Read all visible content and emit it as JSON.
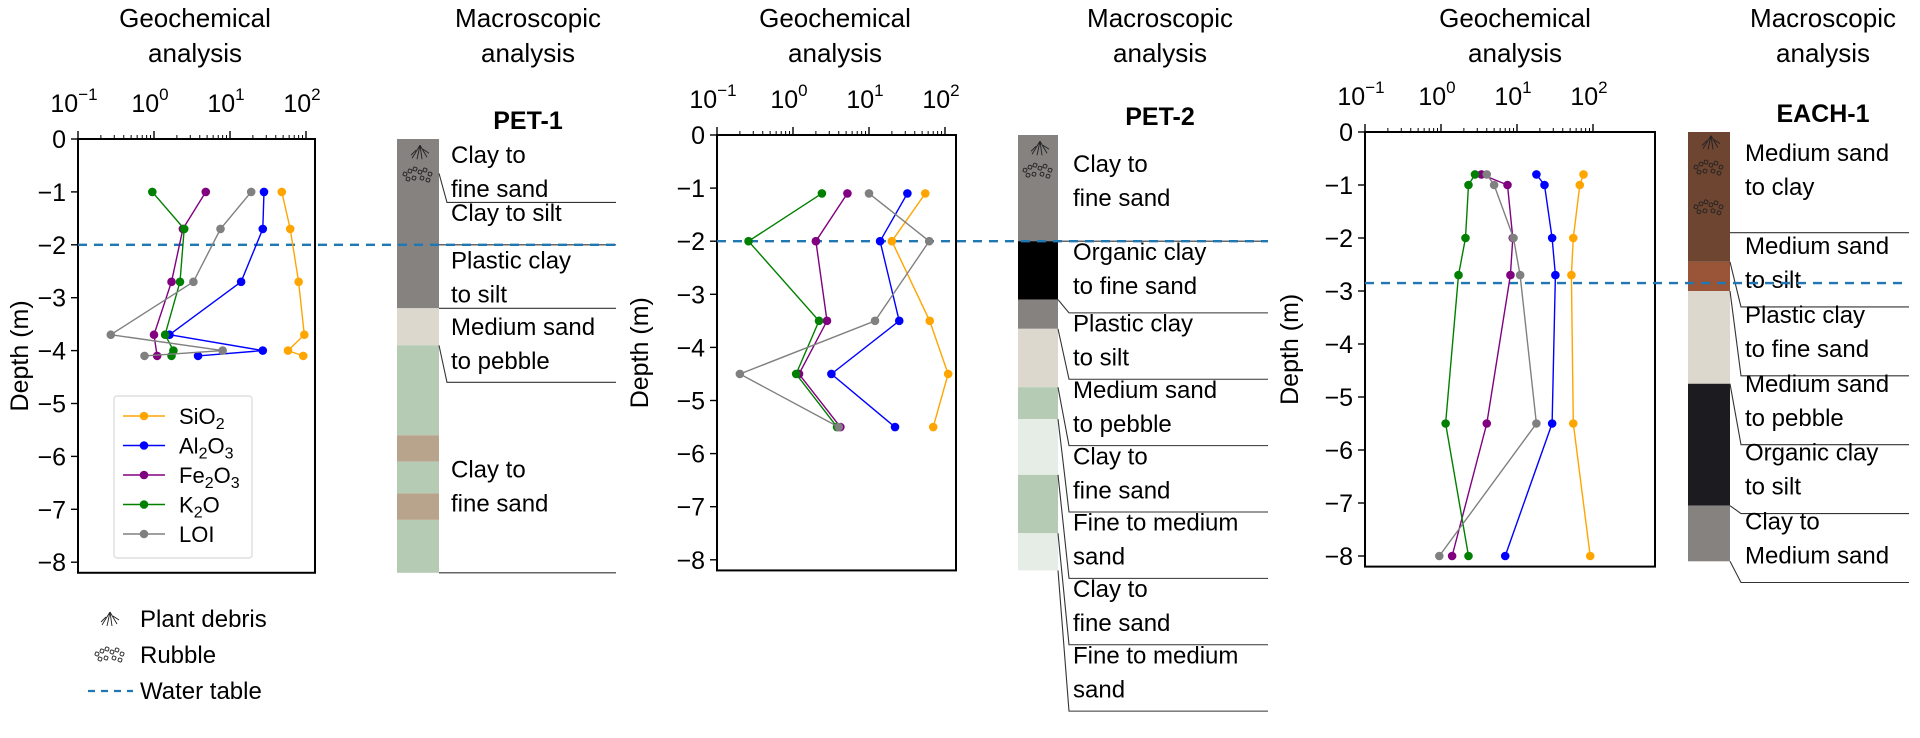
{
  "colors": {
    "SiO2": "#ffa500",
    "Al2O3": "#0000ff",
    "Fe2O3": "#800080",
    "K2O": "#008000",
    "LOI": "#808080",
    "water_table": "#1f77b4",
    "clay_grey": "#858280",
    "organic_black": "#000000",
    "organic_dark": "#1c1b20",
    "pale": "#ddd8ce",
    "green": "#b6cbb4",
    "light_green": "#e6ede6",
    "tan": "#b8a48c",
    "brown": "#6e4531",
    "rust": "#9a5438"
  },
  "legend_keys": {
    "plant_debris": "Plant debris",
    "rubble": "Rubble",
    "water_table": "Water table"
  },
  "chart_data": [
    {
      "type": "line",
      "well": "PET-1",
      "geo_title_1": "Geochemical",
      "geo_title_2": "analysis",
      "macro_title_1": "Macroscopic",
      "macro_title_2": "analysis",
      "xscale": "log",
      "xlim": [
        0.1,
        135
      ],
      "ylim": [
        -8.2,
        0
      ],
      "xticks": [
        {
          "base": "10",
          "exp": "−1",
          "value": 0.1
        },
        {
          "base": "10",
          "exp": "0",
          "value": 1
        },
        {
          "base": "10",
          "exp": "1",
          "value": 10
        },
        {
          "base": "10",
          "exp": "2",
          "value": 100
        }
      ],
      "yticks": [
        {
          "label": "0",
          "value": 0
        },
        {
          "label": "−1",
          "value": -1
        },
        {
          "label": "−2",
          "value": -2
        },
        {
          "label": "−3",
          "value": -3
        },
        {
          "label": "−4",
          "value": -4
        },
        {
          "label": "−5",
          "value": -5
        },
        {
          "label": "−6",
          "value": -6
        },
        {
          "label": "−7",
          "value": -7
        },
        {
          "label": "−8",
          "value": -8
        }
      ],
      "ylabel": "Depth (m)",
      "water_table_depth": -2.0,
      "legend": "lower-left",
      "series": [
        {
          "name": "SiO2",
          "label_main": "SiO",
          "label_sub": "2",
          "label_tail": "",
          "points": [
            [
              48,
              -1
            ],
            [
              62,
              -1.7
            ],
            [
              80,
              -2.7
            ],
            [
              95,
              -3.7
            ],
            [
              58,
              -4
            ],
            [
              92,
              -4.1
            ]
          ]
        },
        {
          "name": "Al2O3",
          "label_main": "Al",
          "label_sub": "2",
          "label_tail": "O",
          "label_sub2": "3",
          "points": [
            [
              28,
              -1
            ],
            [
              27,
              -1.7
            ],
            [
              14,
              -2.7
            ],
            [
              1.6,
              -3.7
            ],
            [
              27,
              -4
            ],
            [
              3.8,
              -4.1
            ]
          ]
        },
        {
          "name": "Fe2O3",
          "label_main": "Fe",
          "label_sub": "2",
          "label_tail": "O",
          "label_sub2": "3",
          "points": [
            [
              4.8,
              -1
            ],
            [
              2.4,
              -1.7
            ],
            [
              1.7,
              -2.7
            ],
            [
              1.0,
              -3.7
            ],
            [
              1.1,
              -4.1
            ]
          ]
        },
        {
          "name": "K2O",
          "label_main": "K",
          "label_sub": "2",
          "label_tail": "O",
          "points": [
            [
              0.95,
              -1
            ],
            [
              2.5,
              -1.7
            ],
            [
              2.2,
              -2.7
            ],
            [
              1.4,
              -3.7
            ],
            [
              1.8,
              -4
            ],
            [
              1.7,
              -4.1
            ]
          ]
        },
        {
          "name": "LOI",
          "label_main": "LOI",
          "label_sub": "",
          "label_tail": "",
          "points": [
            [
              19,
              -1
            ],
            [
              7.5,
              -1.7
            ],
            [
              3.3,
              -2.7
            ],
            [
              0.27,
              -3.7
            ],
            [
              8,
              -4
            ],
            [
              0.75,
              -4.1
            ]
          ]
        }
      ],
      "column": [
        {
          "top": 0,
          "bottom": -3.2,
          "color": "clay_grey"
        },
        {
          "top": -3.2,
          "bottom": -3.9,
          "color": "pale"
        },
        {
          "top": -3.9,
          "bottom": -5.6,
          "color": "green"
        },
        {
          "top": -5.6,
          "bottom": -6.1,
          "color": "tan"
        },
        {
          "top": -6.1,
          "bottom": -6.7,
          "color": "green"
        },
        {
          "top": -6.7,
          "bottom": -7.2,
          "color": "tan"
        },
        {
          "top": -7.2,
          "bottom": -8.2,
          "color": "green"
        }
      ],
      "icons": [
        {
          "type": "plant",
          "depth": -0.25
        },
        {
          "type": "rubble",
          "depth": -0.7
        }
      ],
      "units": [
        {
          "lines": [
            "Clay to",
            "fine sand"
          ],
          "text_top": -0.3,
          "line_depth": -1.2,
          "connect_depth": -0.65
        },
        {
          "lines": [
            "Clay to silt"
          ],
          "text_top": -1.4,
          "line_depth": -2.0,
          "connect_depth": -2.0
        },
        {
          "lines": [
            "Plastic clay",
            "to silt"
          ],
          "text_top": -2.3,
          "line_depth": -3.2,
          "connect_depth": -3.2
        },
        {
          "lines": [
            "Medium sand",
            "to pebble"
          ],
          "text_top": -3.55,
          "line_depth": -4.6,
          "connect_depth": -3.9
        },
        {
          "lines": [
            "Clay to",
            "fine sand"
          ],
          "text_top": -6.25,
          "line_depth": -8.2,
          "connect_depth": -8.2
        }
      ]
    },
    {
      "type": "line",
      "well": "PET-2",
      "geo_title_1": "Geochemical",
      "geo_title_2": "analysis",
      "macro_title_1": "Macroscopic",
      "macro_title_2": "analysis",
      "xscale": "log",
      "xlim": [
        0.1,
        135
      ],
      "ylim": [
        -8.2,
        0
      ],
      "xticks": [
        {
          "base": "10",
          "exp": "−1",
          "value": 0.1
        },
        {
          "base": "10",
          "exp": "0",
          "value": 1
        },
        {
          "base": "10",
          "exp": "1",
          "value": 10
        },
        {
          "base": "10",
          "exp": "2",
          "value": 100
        }
      ],
      "yticks": [
        {
          "label": "0",
          "value": 0
        },
        {
          "label": "−1",
          "value": -1
        },
        {
          "label": "−2",
          "value": -2
        },
        {
          "label": "−3",
          "value": -3
        },
        {
          "label": "−4",
          "value": -4
        },
        {
          "label": "−5",
          "value": -5
        },
        {
          "label": "−6",
          "value": -6
        },
        {
          "label": "−7",
          "value": -7
        },
        {
          "label": "−8",
          "value": -8
        }
      ],
      "ylabel": "Depth (m)",
      "water_table_depth": -2.0,
      "series": [
        {
          "name": "SiO2",
          "points": [
            [
              55,
              -1.1
            ],
            [
              20,
              -2
            ],
            [
              63,
              -3.5
            ],
            [
              110,
              -4.5
            ],
            [
              70,
              -5.5
            ]
          ]
        },
        {
          "name": "Al2O3",
          "points": [
            [
              32,
              -1.1
            ],
            [
              14,
              -2
            ],
            [
              25,
              -3.5
            ],
            [
              3.2,
              -4.5
            ],
            [
              22,
              -5.5
            ]
          ]
        },
        {
          "name": "Fe2O3",
          "points": [
            [
              5.2,
              -1.1
            ],
            [
              2.0,
              -2
            ],
            [
              2.8,
              -3.5
            ],
            [
              1.2,
              -4.5
            ],
            [
              4.2,
              -5.5
            ]
          ]
        },
        {
          "name": "K2O",
          "points": [
            [
              2.4,
              -1.1
            ],
            [
              0.26,
              -2
            ],
            [
              2.2,
              -3.5
            ],
            [
              1.1,
              -4.5
            ],
            [
              3.8,
              -5.5
            ]
          ]
        },
        {
          "name": "LOI",
          "points": [
            [
              10,
              -1.1
            ],
            [
              62,
              -2
            ],
            [
              12,
              -3.5
            ],
            [
              0.2,
              -4.5
            ],
            [
              4.0,
              -5.5
            ]
          ]
        }
      ],
      "column": [
        {
          "top": 0,
          "bottom": -2.0,
          "color": "clay_grey"
        },
        {
          "top": -2.0,
          "bottom": -3.1,
          "color": "organic_black"
        },
        {
          "top": -3.1,
          "bottom": -3.65,
          "color": "clay_grey"
        },
        {
          "top": -3.65,
          "bottom": -4.75,
          "color": "pale"
        },
        {
          "top": -4.75,
          "bottom": -5.35,
          "color": "green"
        },
        {
          "top": -5.35,
          "bottom": -6.4,
          "color": "light_green"
        },
        {
          "top": -6.4,
          "bottom": -7.5,
          "color": "green"
        },
        {
          "top": -7.5,
          "bottom": -8.2,
          "color": "light_green"
        }
      ],
      "icons": [
        {
          "type": "plant",
          "depth": -0.25
        },
        {
          "type": "rubble",
          "depth": -0.7
        }
      ],
      "units": [
        {
          "lines": [
            "Clay to",
            "fine sand"
          ],
          "text_top": -0.55,
          "line_depth": -2.0,
          "connect_depth": -2.0
        },
        {
          "lines": [
            "Organic clay",
            "to fine sand"
          ],
          "text_top": -2.2,
          "line_depth": -3.35,
          "connect_depth": -3.1
        },
        {
          "lines": [
            "Plastic clay",
            "to silt"
          ],
          "text_top": -3.55,
          "line_depth": -4.6,
          "connect_depth": -3.65
        },
        {
          "lines": [
            "Medium sand",
            "to pebble"
          ],
          "text_top": -4.8,
          "line_depth": -5.85,
          "connect_depth": -4.75
        },
        {
          "lines": [
            "Clay to",
            "fine sand"
          ],
          "text_top": -6.05,
          "line_depth": -7.1,
          "connect_depth": -5.35
        },
        {
          "lines": [
            "Fine to medium",
            "sand"
          ],
          "text_top": -7.3,
          "line_depth": -8.35,
          "connect_depth": -6.4
        },
        {
          "lines": [
            "Clay to",
            "fine sand"
          ],
          "text_top": -8.55,
          "line_depth": -9.6,
          "connect_depth": -7.5
        },
        {
          "lines": [
            "Fine to medium",
            "sand"
          ],
          "text_top": -9.8,
          "line_depth": -10.85,
          "connect_depth": -8.2
        }
      ]
    },
    {
      "type": "line",
      "well": "EACH-1",
      "geo_title_1": "Geochemical",
      "geo_title_2": "analysis",
      "macro_title_1": "Macroscopic",
      "macro_title_2": "analysis",
      "xscale": "log",
      "xlim": [
        0.1,
        135
      ],
      "ylim": [
        -8.2,
        0
      ],
      "xticks": [
        {
          "base": "10",
          "exp": "−1",
          "value": 0.1
        },
        {
          "base": "10",
          "exp": "0",
          "value": 1
        },
        {
          "base": "10",
          "exp": "1",
          "value": 10
        },
        {
          "base": "10",
          "exp": "2",
          "value": 100
        }
      ],
      "yticks": [
        {
          "label": "0",
          "value": 0
        },
        {
          "label": "−1",
          "value": -1
        },
        {
          "label": "−2",
          "value": -2
        },
        {
          "label": "−3",
          "value": -3
        },
        {
          "label": "−4",
          "value": -4
        },
        {
          "label": "−5",
          "value": -5
        },
        {
          "label": "−6",
          "value": -6
        },
        {
          "label": "−7",
          "value": -7
        },
        {
          "label": "−8",
          "value": -8
        }
      ],
      "ylabel": "Depth (m)",
      "water_table_depth": -2.85,
      "series": [
        {
          "name": "SiO2",
          "points": [
            [
              75,
              -0.8
            ],
            [
              67,
              -1
            ],
            [
              55,
              -2
            ],
            [
              52,
              -2.7
            ],
            [
              55,
              -5.5
            ],
            [
              92,
              -8
            ]
          ]
        },
        {
          "name": "Al2O3",
          "points": [
            [
              18,
              -0.8
            ],
            [
              23,
              -1
            ],
            [
              29,
              -2
            ],
            [
              32,
              -2.7
            ],
            [
              29,
              -5.5
            ],
            [
              7,
              -8
            ]
          ]
        },
        {
          "name": "Fe2O3",
          "points": [
            [
              3.4,
              -0.8
            ],
            [
              7.5,
              -1
            ],
            [
              8.8,
              -2
            ],
            [
              8.2,
              -2.7
            ],
            [
              4.0,
              -5.5
            ],
            [
              1.4,
              -8
            ]
          ]
        },
        {
          "name": "K2O",
          "points": [
            [
              2.8,
              -0.8
            ],
            [
              2.3,
              -1
            ],
            [
              2.1,
              -2
            ],
            [
              1.7,
              -2.7
            ],
            [
              1.15,
              -5.5
            ],
            [
              2.3,
              -8
            ]
          ]
        },
        {
          "name": "LOI",
          "points": [
            [
              4.0,
              -0.8
            ],
            [
              5.0,
              -1
            ],
            [
              9.0,
              -2
            ],
            [
              11,
              -2.7
            ],
            [
              18,
              -5.5
            ],
            [
              0.95,
              -8
            ]
          ]
        }
      ],
      "column": [
        {
          "top": 0,
          "bottom": -2.45,
          "color": "brown"
        },
        {
          "top": -2.45,
          "bottom": -3.0,
          "color": "rust"
        },
        {
          "top": -3.0,
          "bottom": -4.75,
          "color": "pale"
        },
        {
          "top": -4.75,
          "bottom": -7.05,
          "color": "organic_dark"
        },
        {
          "top": -7.05,
          "bottom": -8.1,
          "color": "clay_grey"
        }
      ],
      "icons": [
        {
          "type": "plant",
          "depth": -0.2
        },
        {
          "type": "rubble",
          "depth": -0.7
        },
        {
          "type": "rubble",
          "depth": -1.45
        }
      ],
      "units": [
        {
          "lines": [
            "Medium sand",
            "to clay"
          ],
          "text_top": -0.4,
          "line_depth": -1.9,
          "connect_depth": -1.9
        },
        {
          "lines": [
            "Medium sand",
            "to silt"
          ],
          "text_top": -2.15,
          "line_depth": -3.3,
          "connect_depth": -2.45
        },
        {
          "lines": [
            "Plastic clay",
            "to fine sand"
          ],
          "text_top": -3.45,
          "line_depth": -4.6,
          "connect_depth": -3.0
        },
        {
          "lines": [
            "Medium sand",
            "to pebble"
          ],
          "text_top": -4.75,
          "line_depth": -5.9,
          "connect_depth": -4.75
        },
        {
          "lines": [
            "Organic clay",
            "to silt"
          ],
          "text_top": -6.05,
          "line_depth": -7.2,
          "connect_depth": -7.05
        },
        {
          "lines": [
            "Clay to",
            "Medium sand"
          ],
          "text_top": -7.35,
          "line_depth": -8.5,
          "connect_depth": -8.1
        }
      ]
    }
  ]
}
